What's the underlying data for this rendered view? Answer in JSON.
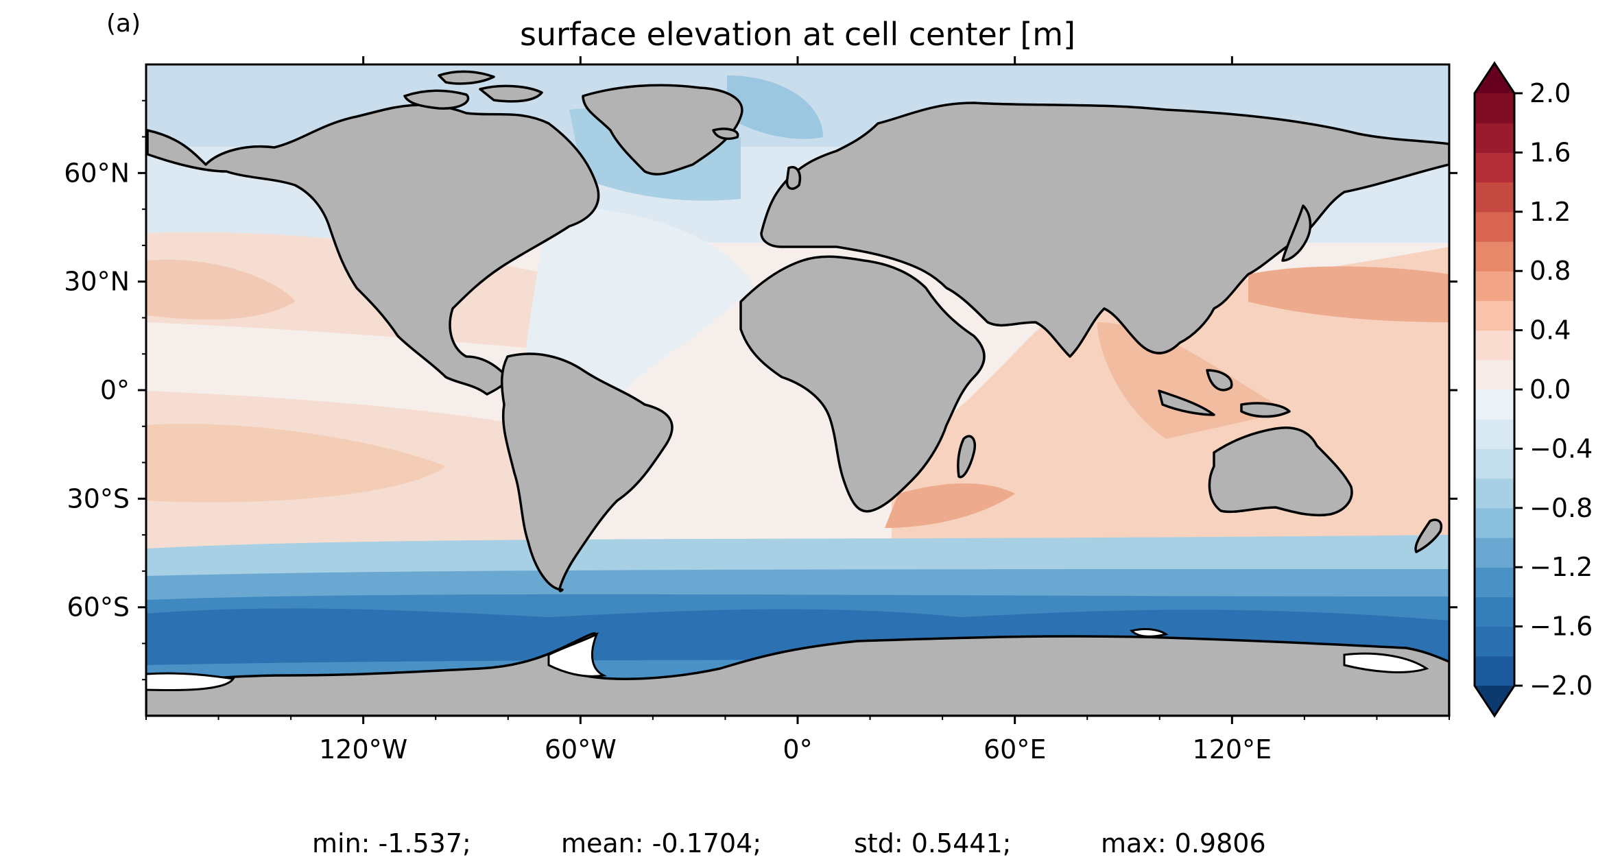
{
  "figure": {
    "panel_label": "(a)",
    "title": "surface elevation at cell center [m]",
    "stats": {
      "min": "min: -1.537;",
      "mean": "mean: -0.1704;",
      "std": "std: 0.5441;",
      "max": "max: 0.9806"
    }
  },
  "map": {
    "projection": "PlateCarree",
    "lon_range": [
      -180,
      180
    ],
    "lat_range": [
      -90,
      90
    ],
    "land_color": "#b3b3b3",
    "coastline_color": "#000000",
    "x_ticks": [
      {
        "lon": -120,
        "label": "120°W"
      },
      {
        "lon": -60,
        "label": "60°W"
      },
      {
        "lon": 0,
        "label": "0°"
      },
      {
        "lon": 60,
        "label": "60°E"
      },
      {
        "lon": 120,
        "label": "120°E"
      }
    ],
    "y_ticks": [
      {
        "lat": 60,
        "label": "60°N"
      },
      {
        "lat": 30,
        "label": "30°N"
      },
      {
        "lat": 0,
        "label": "0°"
      },
      {
        "lat": -30,
        "label": "30°S"
      },
      {
        "lat": -60,
        "label": "60°S"
      }
    ]
  },
  "colorbar": {
    "colormap": "RdBu_r",
    "levels": [
      -2.0,
      -1.8,
      -1.6,
      -1.4,
      -1.2,
      -1.0,
      -0.8,
      -0.6,
      -0.4,
      -0.2,
      0.0,
      0.2,
      0.4,
      0.6,
      0.8,
      1.0,
      1.2,
      1.4,
      1.6,
      1.8,
      2.0
    ],
    "colors": [
      "#1c5c9e",
      "#2a6fb0",
      "#3580bb",
      "#4a92c5",
      "#6aa8d1",
      "#8abfdd",
      "#a8d0e5",
      "#c3dfee",
      "#d9e9f3",
      "#ebf2f7",
      "#f7ece8",
      "#fbdcd0",
      "#f8c3aa",
      "#f2a687",
      "#e8886b",
      "#d7654f",
      "#c54a42",
      "#b32e36",
      "#9a1a2e",
      "#7f0d24"
    ],
    "under_color": "#0d3a6e",
    "over_color": "#67001f",
    "tick_labels": [
      "2.0",
      "1.6",
      "1.2",
      "0.8",
      "0.4",
      "0.0",
      "−0.4",
      "−0.8",
      "−1.2",
      "−1.6",
      "−2.0"
    ],
    "tick_values": [
      2.0,
      1.6,
      1.2,
      0.8,
      0.4,
      0.0,
      -0.4,
      -0.8,
      -1.2,
      -1.6,
      -2.0
    ]
  }
}
